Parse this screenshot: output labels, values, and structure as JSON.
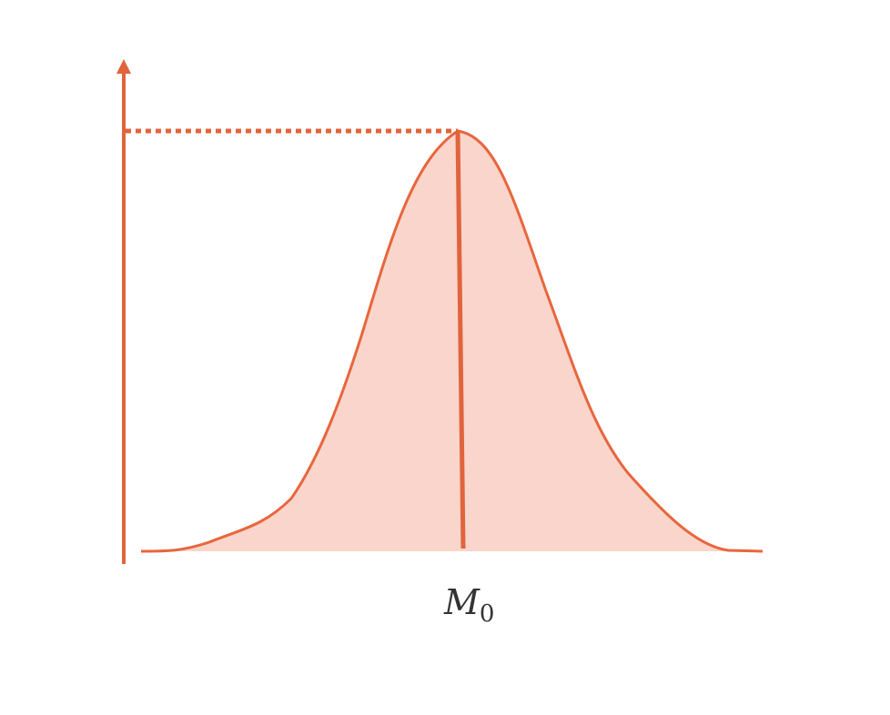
{
  "diagram": {
    "type": "unimodal distribution curve",
    "mode_label": {
      "symbol": "M",
      "subscript": "0"
    },
    "colors": {
      "line": "#E8663D",
      "fill": "#F9D5CB",
      "axis": "#E0643C"
    }
  }
}
